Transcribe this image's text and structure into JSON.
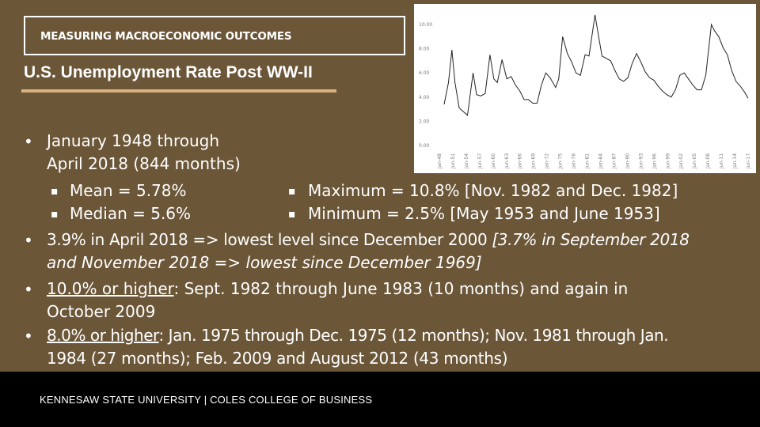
{
  "header": {
    "section_label": "MEASURING MACROECONOMIC OUTCOMES"
  },
  "title": "U.S. Unemployment Rate Post WW-II",
  "bullets": {
    "b1_line1": "January 1948 through",
    "b1_line2": "April 2018 (844 months)",
    "mean": "Mean = 5.78%",
    "median": "Median = 5.6%",
    "maximum": "Maximum = 10.8% [Nov. 1982 and Dec. 1982]",
    "minimum": "Minimum = 2.5% [May 1953 and June 1953]",
    "b2_line1_main": "3.9% in April 2018 => lowest level since December 2000 ",
    "b2_line1_italic": "[3.7% in September 2018",
    "b2_line2_italic": "and November 2018 => lowest since December 1969]",
    "b3_label": "10.0% or higher",
    "b3_line1_rest": ": Sept. 1982 through June 1983 (10 months) and again in",
    "b3_line2": "October 2009",
    "b4_label": "8.0% or higher",
    "b4_line1_rest": ": Jan. 1975 through Dec. 1975 (12 months); Nov. 1981 through Jan.",
    "b4_line2": "1984 (27 months); Feb. 2009 and August 2012 (43 months)"
  },
  "footer": {
    "text": "KENNESAW STATE UNIVERSITY | COLES COLLEGE OF BUSINESS"
  },
  "colors": {
    "background": "#6b5638",
    "accent": "#d9b27f",
    "footer": "#000000",
    "line": "#222222"
  },
  "chart_data": {
    "type": "line",
    "title": "",
    "xlabel": "",
    "ylabel": "",
    "ylim": [
      0,
      10
    ],
    "y_ticks": [
      "10.00",
      "8.00",
      "6.00",
      "4.00",
      "2.00",
      "0.00"
    ],
    "y_tick_values": [
      10,
      8,
      6,
      4,
      2,
      0
    ],
    "x_ticks": [
      "Jan-48",
      "Jun-51",
      "Jan-54",
      "Jun-57",
      "Jan-60",
      "Jun-63",
      "Jan-66",
      "Jun-69",
      "Jan-72",
      "Jun-75",
      "Jan-78",
      "Jun-81",
      "Jan-84",
      "Jun-87",
      "Jan-90",
      "Jun-93",
      "Jan-96",
      "Jun-99",
      "Jan-02",
      "Jun-05",
      "Jan-08",
      "Jun-11",
      "Jan-14",
      "Jun-17"
    ],
    "series": [
      {
        "name": "Unemployment Rate",
        "x": [
          1948.0,
          1949.0,
          1949.8,
          1950.5,
          1951.5,
          1953.4,
          1954.7,
          1955.5,
          1956.5,
          1957.5,
          1958.6,
          1959.5,
          1960.3,
          1961.4,
          1962.5,
          1963.5,
          1964.5,
          1965.5,
          1966.5,
          1967.5,
          1968.5,
          1969.5,
          1970.5,
          1971.5,
          1972.5,
          1973.8,
          1974.5,
          1975.4,
          1976.5,
          1977.5,
          1978.5,
          1979.5,
          1980.6,
          1981.5,
          1982.9,
          1983.5,
          1984.5,
          1985.5,
          1986.5,
          1987.5,
          1988.5,
          1989.5,
          1990.5,
          1991.5,
          1992.5,
          1993.5,
          1994.5,
          1995.5,
          1996.5,
          1997.5,
          1998.5,
          1999.5,
          2000.5,
          2001.5,
          2002.5,
          2003.5,
          2004.5,
          2005.5,
          2006.5,
          2007.5,
          2008.5,
          2009.8,
          2010.5,
          2011.5,
          2012.5,
          2013.5,
          2014.5,
          2015.5,
          2016.5,
          2017.5,
          2018.3
        ],
        "values": [
          3.4,
          5.2,
          7.9,
          5.2,
          3.1,
          2.5,
          6.0,
          4.2,
          4.1,
          4.3,
          7.5,
          5.5,
          5.2,
          7.1,
          5.5,
          5.7,
          5.0,
          4.5,
          3.8,
          3.8,
          3.5,
          3.5,
          5.0,
          6.0,
          5.6,
          4.8,
          5.5,
          9.0,
          7.6,
          6.9,
          6.0,
          5.8,
          7.5,
          7.4,
          10.8,
          9.5,
          7.4,
          7.2,
          7.0,
          6.2,
          5.5,
          5.3,
          5.6,
          6.8,
          7.6,
          6.9,
          6.1,
          5.6,
          5.4,
          4.9,
          4.5,
          4.2,
          4.0,
          4.6,
          5.8,
          6.0,
          5.5,
          5.0,
          4.6,
          4.6,
          5.8,
          10.0,
          9.5,
          9.0,
          8.1,
          7.5,
          6.2,
          5.3,
          4.9,
          4.4,
          3.9
        ]
      }
    ]
  }
}
